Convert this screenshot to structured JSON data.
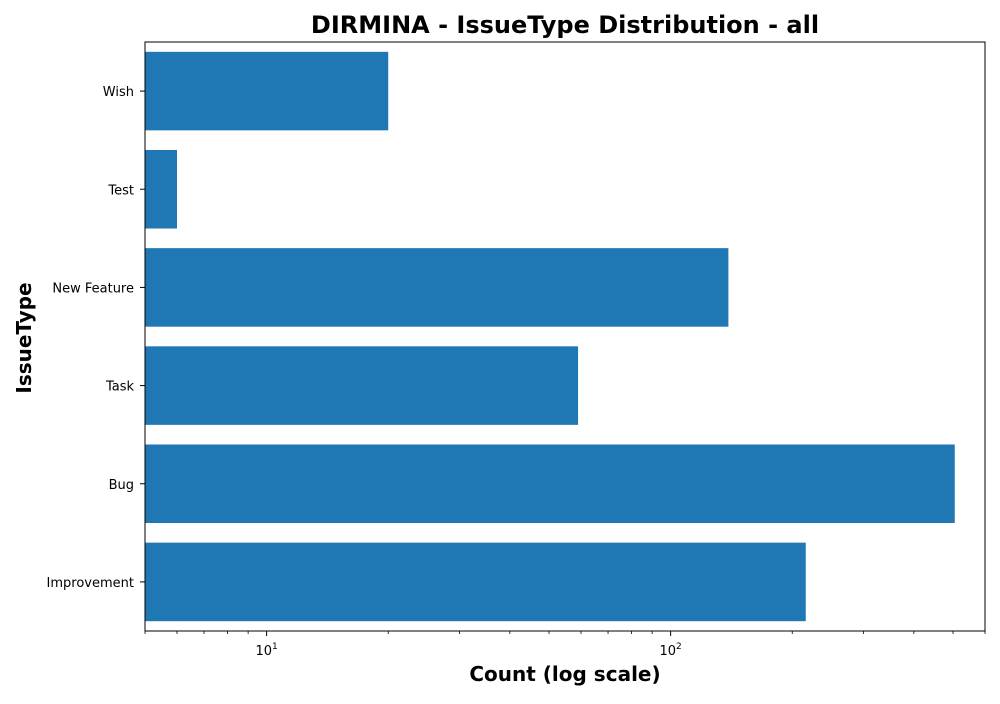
{
  "chart_data": {
    "type": "bar",
    "orientation": "horizontal",
    "title": "DIRMINA - IssueType Distribution - all",
    "xlabel": "Count (log scale)",
    "ylabel": "IssueType",
    "x_scale": "log",
    "xlim": [
      5,
      600
    ],
    "x_ticks": [
      {
        "value": 10,
        "base": "10",
        "exp": "1"
      },
      {
        "value": 100,
        "base": "10",
        "exp": "2"
      }
    ],
    "categories": [
      "Improvement",
      "Bug",
      "Task",
      "New Feature",
      "Test",
      "Wish"
    ],
    "values": [
      216,
      505,
      59,
      139,
      6,
      20
    ],
    "bar_color": "#1f77b4",
    "grid": false,
    "legend": "none"
  }
}
